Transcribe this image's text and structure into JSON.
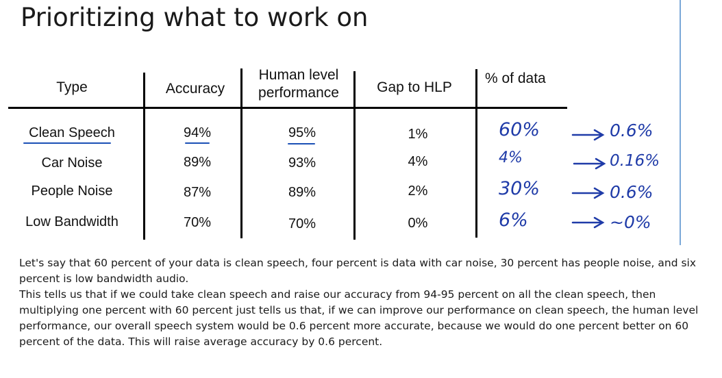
{
  "slide": {
    "title": "Prioritizing what to work on",
    "headers": {
      "type": "Type",
      "accuracy": "Accuracy",
      "human_level": "Human level performance",
      "gap": "Gap to HLP",
      "pct_data": "% of data"
    },
    "rows": [
      {
        "type": "Clean Speech",
        "accuracy": "94%",
        "hlp": "95%",
        "gap": "1%"
      },
      {
        "type": "Car Noise",
        "accuracy": "89%",
        "hlp": "93%",
        "gap": "4%"
      },
      {
        "type": "People Noise",
        "accuracy": "87%",
        "hlp": "89%",
        "gap": "2%"
      },
      {
        "type": "Low Bandwidth",
        "accuracy": "70%",
        "hlp": "70%",
        "gap": "0%"
      }
    ],
    "annotations": {
      "pct": [
        "60%",
        "4%",
        "30%",
        "6%"
      ],
      "result": [
        "0.6%",
        "0.16%",
        "0.6%",
        "~0%"
      ],
      "ink_color": "#1f3ba8"
    }
  },
  "transcript": {
    "lines": [
      "Let's say that 60 percent of your data is clean speech, four percent is data with car noise, 30 percent has people noise, and six percent is low bandwidth audio.",
      "This tells us that if we could take clean speech and raise our accuracy from 94-95 percent on all the clean speech, then multiplying one percent with 60 percent just tells us that, if we can improve our performance on clean speech, the human level performance, our overall speech system would be 0.6 percent more accurate, because we would do one percent better on 60 percent of the data. This will raise average accuracy by 0.6 percent."
    ]
  }
}
